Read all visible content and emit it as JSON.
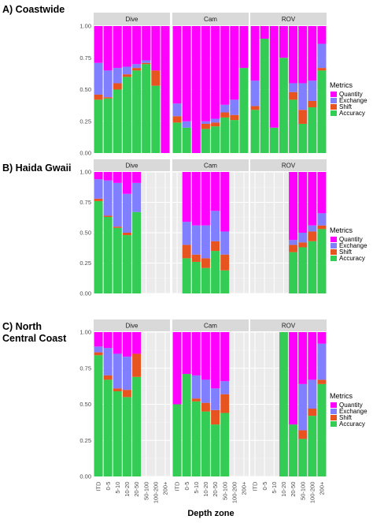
{
  "chart_data": {
    "type": "bar",
    "stacked": true,
    "xlabel": "Depth zone",
    "categories": [
      "ITD",
      "0-5",
      "5-10",
      "10-20",
      "20-50",
      "50-100",
      "100-200",
      "200+"
    ],
    "facets": [
      "Dive",
      "Cam",
      "ROV"
    ],
    "yticks": [
      "0.00",
      "0.25",
      "0.50",
      "0.75",
      "1.00"
    ],
    "ylim": [
      0,
      1
    ],
    "grid": true,
    "legend": {
      "title": "Metrics",
      "placement": "right",
      "items": [
        {
          "name": "Quantity",
          "color": "#ff00ff"
        },
        {
          "name": "Exchange",
          "color": "#7f7fff"
        },
        {
          "name": "Shift",
          "color": "#e8541f"
        },
        {
          "name": "Accuracy",
          "color": "#33cc55"
        }
      ]
    },
    "stack_order": [
      "Accuracy",
      "Shift",
      "Exchange",
      "Quantity"
    ],
    "panels": [
      {
        "label": "A) Coastwide",
        "facets": [
          {
            "name": "Dive",
            "bars": [
              {
                "cat": "ITD",
                "Accuracy": 0.42,
                "Shift": 0.04,
                "Exchange": 0.25,
                "Quantity": 0.29
              },
              {
                "cat": "0-5",
                "Accuracy": 0.43,
                "Shift": 0.01,
                "Exchange": 0.21,
                "Quantity": 0.35
              },
              {
                "cat": "5-10",
                "Accuracy": 0.5,
                "Shift": 0.05,
                "Exchange": 0.12,
                "Quantity": 0.33
              },
              {
                "cat": "10-20",
                "Accuracy": 0.6,
                "Shift": 0.02,
                "Exchange": 0.06,
                "Quantity": 0.32
              },
              {
                "cat": "20-50",
                "Accuracy": 0.65,
                "Shift": 0.02,
                "Exchange": 0.03,
                "Quantity": 0.3
              },
              {
                "cat": "50-100",
                "Accuracy": 0.7,
                "Shift": 0.01,
                "Exchange": 0.02,
                "Quantity": 0.27
              },
              {
                "cat": "100-200",
                "Accuracy": 0.53,
                "Shift": 0.12,
                "Exchange": 0.0,
                "Quantity": 0.35
              },
              {
                "cat": "200+",
                "Accuracy": 0.0,
                "Shift": 0.0,
                "Exchange": 0.0,
                "Quantity": 1.0
              }
            ]
          },
          {
            "name": "Cam",
            "bars": [
              {
                "cat": "ITD",
                "Accuracy": 0.24,
                "Shift": 0.05,
                "Exchange": 0.1,
                "Quantity": 0.61
              },
              {
                "cat": "0-5",
                "Accuracy": 0.2,
                "Shift": 0.0,
                "Exchange": 0.05,
                "Quantity": 0.75
              },
              {
                "cat": "5-10",
                "Accuracy": 0.0,
                "Shift": 0.0,
                "Exchange": 0.0,
                "Quantity": 1.0
              },
              {
                "cat": "10-20",
                "Accuracy": 0.19,
                "Shift": 0.04,
                "Exchange": 0.02,
                "Quantity": 0.75
              },
              {
                "cat": "20-50",
                "Accuracy": 0.21,
                "Shift": 0.03,
                "Exchange": 0.03,
                "Quantity": 0.73
              },
              {
                "cat": "50-100",
                "Accuracy": 0.28,
                "Shift": 0.04,
                "Exchange": 0.06,
                "Quantity": 0.62
              },
              {
                "cat": "100-200",
                "Accuracy": 0.26,
                "Shift": 0.04,
                "Exchange": 0.12,
                "Quantity": 0.58
              },
              {
                "cat": "200+",
                "Accuracy": 0.67,
                "Shift": 0.0,
                "Exchange": 0.0,
                "Quantity": 0.33
              }
            ]
          },
          {
            "name": "ROV",
            "bars": [
              {
                "cat": "ITD",
                "Accuracy": 0.34,
                "Shift": 0.03,
                "Exchange": 0.2,
                "Quantity": 0.43
              },
              {
                "cat": "0-5",
                "Accuracy": 0.9,
                "Shift": 0.0,
                "Exchange": 0.0,
                "Quantity": 0.1
              },
              {
                "cat": "5-10",
                "Accuracy": 0.2,
                "Shift": 0.0,
                "Exchange": 0.0,
                "Quantity": 0.8
              },
              {
                "cat": "10-20",
                "Accuracy": 0.75,
                "Shift": 0.0,
                "Exchange": 0.0,
                "Quantity": 0.25
              },
              {
                "cat": "20-50",
                "Accuracy": 0.42,
                "Shift": 0.06,
                "Exchange": 0.07,
                "Quantity": 0.45
              },
              {
                "cat": "50-100",
                "Accuracy": 0.23,
                "Shift": 0.11,
                "Exchange": 0.21,
                "Quantity": 0.45
              },
              {
                "cat": "100-200",
                "Accuracy": 0.36,
                "Shift": 0.05,
                "Exchange": 0.16,
                "Quantity": 0.43
              },
              {
                "cat": "200+",
                "Accuracy": 0.65,
                "Shift": 0.02,
                "Exchange": 0.19,
                "Quantity": 0.14
              }
            ]
          }
        ]
      },
      {
        "label": "B) Haida Gwaii",
        "facets": [
          {
            "name": "Dive",
            "bars": [
              {
                "cat": "ITD",
                "Accuracy": 0.76,
                "Shift": 0.02,
                "Exchange": 0.16,
                "Quantity": 0.06
              },
              {
                "cat": "0-5",
                "Accuracy": 0.63,
                "Shift": 0.01,
                "Exchange": 0.29,
                "Quantity": 0.07
              },
              {
                "cat": "5-10",
                "Accuracy": 0.54,
                "Shift": 0.01,
                "Exchange": 0.36,
                "Quantity": 0.09
              },
              {
                "cat": "10-20",
                "Accuracy": 0.48,
                "Shift": 0.02,
                "Exchange": 0.32,
                "Quantity": 0.18
              },
              {
                "cat": "20-50",
                "Accuracy": 0.67,
                "Shift": 0.0,
                "Exchange": 0.24,
                "Quantity": 0.09
              },
              {
                "cat": "50-100",
                "empty": true
              },
              {
                "cat": "100-200",
                "empty": true
              },
              {
                "cat": "200+",
                "empty": true
              }
            ]
          },
          {
            "name": "Cam",
            "bars": [
              {
                "cat": "ITD",
                "empty": true
              },
              {
                "cat": "0-5",
                "Accuracy": 0.29,
                "Shift": 0.11,
                "Exchange": 0.19,
                "Quantity": 0.41
              },
              {
                "cat": "5-10",
                "Accuracy": 0.26,
                "Shift": 0.06,
                "Exchange": 0.24,
                "Quantity": 0.44
              },
              {
                "cat": "10-20",
                "Accuracy": 0.21,
                "Shift": 0.08,
                "Exchange": 0.27,
                "Quantity": 0.44
              },
              {
                "cat": "20-50",
                "Accuracy": 0.35,
                "Shift": 0.08,
                "Exchange": 0.25,
                "Quantity": 0.32
              },
              {
                "cat": "50-100",
                "Accuracy": 0.19,
                "Shift": 0.13,
                "Exchange": 0.19,
                "Quantity": 0.49
              },
              {
                "cat": "100-200",
                "empty": true
              },
              {
                "cat": "200+",
                "empty": true
              }
            ]
          },
          {
            "name": "ROV",
            "bars": [
              {
                "cat": "ITD",
                "empty": true
              },
              {
                "cat": "0-5",
                "empty": true
              },
              {
                "cat": "5-10",
                "empty": true
              },
              {
                "cat": "10-20",
                "empty": true
              },
              {
                "cat": "20-50",
                "Accuracy": 0.34,
                "Shift": 0.06,
                "Exchange": 0.04,
                "Quantity": 0.56
              },
              {
                "cat": "50-100",
                "Accuracy": 0.38,
                "Shift": 0.04,
                "Exchange": 0.08,
                "Quantity": 0.5
              },
              {
                "cat": "100-200",
                "Accuracy": 0.43,
                "Shift": 0.08,
                "Exchange": 0.05,
                "Quantity": 0.44
              },
              {
                "cat": "200+",
                "Accuracy": 0.53,
                "Shift": 0.03,
                "Exchange": 0.1,
                "Quantity": 0.34
              }
            ]
          }
        ]
      },
      {
        "label": "C) North Central Coast",
        "facets": [
          {
            "name": "Dive",
            "bars": [
              {
                "cat": "ITD",
                "Accuracy": 0.84,
                "Shift": 0.02,
                "Exchange": 0.04,
                "Quantity": 0.1
              },
              {
                "cat": "0-5",
                "Accuracy": 0.67,
                "Shift": 0.03,
                "Exchange": 0.19,
                "Quantity": 0.11
              },
              {
                "cat": "5-10",
                "Accuracy": 0.59,
                "Shift": 0.02,
                "Exchange": 0.24,
                "Quantity": 0.15
              },
              {
                "cat": "10-20",
                "Accuracy": 0.55,
                "Shift": 0.05,
                "Exchange": 0.23,
                "Quantity": 0.17
              },
              {
                "cat": "20-50",
                "Accuracy": 0.69,
                "Shift": 0.16,
                "Exchange": 0.0,
                "Quantity": 0.15
              },
              {
                "cat": "50-100",
                "empty": true
              },
              {
                "cat": "100-200",
                "empty": true
              },
              {
                "cat": "200+",
                "empty": true
              }
            ]
          },
          {
            "name": "Cam",
            "bars": [
              {
                "cat": "ITD",
                "Accuracy": 0.5,
                "Shift": 0.0,
                "Exchange": 0.0,
                "Quantity": 0.5
              },
              {
                "cat": "0-5",
                "Accuracy": 0.71,
                "Shift": 0.0,
                "Exchange": 0.0,
                "Quantity": 0.29
              },
              {
                "cat": "5-10",
                "Accuracy": 0.52,
                "Shift": 0.02,
                "Exchange": 0.16,
                "Quantity": 0.3
              },
              {
                "cat": "10-20",
                "Accuracy": 0.45,
                "Shift": 0.06,
                "Exchange": 0.16,
                "Quantity": 0.33
              },
              {
                "cat": "20-50",
                "Accuracy": 0.36,
                "Shift": 0.1,
                "Exchange": 0.15,
                "Quantity": 0.39
              },
              {
                "cat": "50-100",
                "Accuracy": 0.44,
                "Shift": 0.13,
                "Exchange": 0.09,
                "Quantity": 0.34
              },
              {
                "cat": "100-200",
                "empty": true
              },
              {
                "cat": "200+",
                "empty": true
              }
            ]
          },
          {
            "name": "ROV",
            "bars": [
              {
                "cat": "ITD",
                "empty": true
              },
              {
                "cat": "0-5",
                "empty": true
              },
              {
                "cat": "5-10",
                "empty": true
              },
              {
                "cat": "10-20",
                "Accuracy": 1.0,
                "Shift": 0.0,
                "Exchange": 0.0,
                "Quantity": 0.0
              },
              {
                "cat": "20-50",
                "Accuracy": 0.36,
                "Shift": 0.0,
                "Exchange": 0.0,
                "Quantity": 0.64
              },
              {
                "cat": "50-100",
                "Accuracy": 0.26,
                "Shift": 0.06,
                "Exchange": 0.32,
                "Quantity": 0.36
              },
              {
                "cat": "100-200",
                "Accuracy": 0.42,
                "Shift": 0.05,
                "Exchange": 0.2,
                "Quantity": 0.33
              },
              {
                "cat": "200+",
                "Accuracy": 0.64,
                "Shift": 0.03,
                "Exchange": 0.25,
                "Quantity": 0.08
              }
            ]
          }
        ]
      }
    ]
  }
}
